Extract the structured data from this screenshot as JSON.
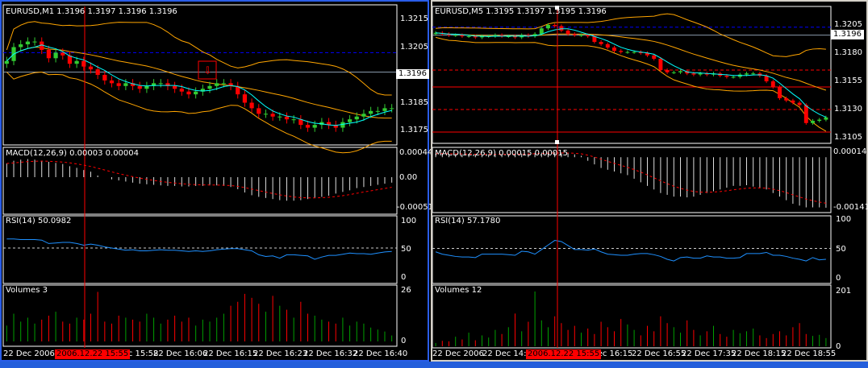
{
  "colors": {
    "up": "#32cd32",
    "down": "#ff0000",
    "bands": "#ffa500",
    "ma": "#00ffff",
    "rsi": "#1e90ff",
    "grid": "#ffffff",
    "active_frame": "#2a5de8"
  },
  "left": {
    "title": "EURUSD,M1  1.3196 1.3197 1.3196 1.3196",
    "price_ticks": [
      "1.3215",
      "1.3205",
      "1.3185",
      "1.3175"
    ],
    "price_tick_values": [
      1.3215,
      1.3205,
      1.3185,
      1.3175
    ],
    "current_price": "1.3196",
    "macd_label": "MACD(12,26,9) 0.00003 0.00004",
    "macd_ticks": [
      "0.00044",
      "0.00",
      "-0.00051"
    ],
    "rsi_label": "RSI(14) 50.0982",
    "rsi_ticks": [
      "100",
      "50",
      "0"
    ],
    "volume_label": "Volumes 3",
    "volume_ticks": [
      "26",
      "0"
    ],
    "cursor_time": "2006.12.22 15:55",
    "time_labels": [
      "22 Dec 2006",
      "Dec 15:58",
      "22 Dec 16:06",
      "22 Dec 16:15",
      "22 Dec 16:23",
      "22 Dec 16:32",
      "22 Dec 16:40"
    ],
    "closes": [
      1.32,
      1.3205,
      1.3206,
      1.3207,
      1.3207,
      1.3204,
      1.3201,
      1.3203,
      1.3202,
      1.3199,
      1.32,
      1.3198,
      1.3197,
      1.3195,
      1.3193,
      1.3192,
      1.3191,
      1.3192,
      1.3191,
      1.319,
      1.3191,
      1.3192,
      1.3192,
      1.3191,
      1.319,
      1.3189,
      1.3188,
      1.3189,
      1.319,
      1.3191,
      1.3192,
      1.3192,
      1.3191,
      1.3188,
      1.3185,
      1.3183,
      1.3181,
      1.3181,
      1.318,
      1.318,
      1.3179,
      1.3179,
      1.3177,
      1.3176,
      1.3177,
      1.3178,
      1.3177,
      1.3176,
      1.3178,
      1.3179,
      1.318,
      1.3181,
      1.3182,
      1.3182,
      1.3183,
      1.3183
    ],
    "macd_hist": [
      0.00025,
      0.0003,
      0.00032,
      0.00033,
      0.00032,
      0.0003,
      0.00028,
      0.00026,
      0.00024,
      0.0002,
      0.00017,
      0.00013,
      0.0001,
      3e-05,
      0,
      -4e-05,
      -6e-05,
      -8e-05,
      -0.0001,
      -0.00012,
      -0.00013,
      -0.00014,
      -0.00015,
      -0.00016,
      -0.00016,
      -0.00017,
      -0.00017,
      -0.00016,
      -0.00016,
      -0.00015,
      -0.00015,
      -0.00016,
      -0.00018,
      -0.00022,
      -0.00028,
      -0.00033,
      -0.00036,
      -0.00038,
      -0.0004,
      -0.00042,
      -0.00043,
      -0.00043,
      -0.00042,
      -0.0004,
      -0.00038,
      -0.00036,
      -0.00034,
      -0.0003,
      -0.00027,
      -0.00024,
      -0.0002,
      -0.00018,
      -0.00016,
      -0.00014,
      -0.00012,
      -0.0001
    ],
    "rsi": [
      66,
      66,
      65,
      65,
      65,
      64,
      58,
      59,
      60,
      60,
      58,
      55,
      57,
      55,
      52,
      50,
      48,
      46,
      47,
      45,
      45,
      46,
      47,
      46,
      46,
      45,
      44,
      45,
      44,
      45,
      47,
      48,
      49,
      49,
      47,
      45,
      38,
      35,
      36,
      32,
      38,
      38,
      37,
      36,
      30,
      34,
      37,
      37,
      39,
      41,
      40,
      40,
      39,
      41,
      43,
      44
    ],
    "volumes": [
      8,
      14,
      10,
      12,
      9,
      11,
      13,
      15,
      10,
      9,
      12,
      11,
      14,
      25,
      10,
      9,
      13,
      12,
      11,
      10,
      14,
      12,
      9,
      11,
      13,
      10,
      12,
      8,
      11,
      10,
      12,
      14,
      18,
      20,
      24,
      22,
      19,
      15,
      23,
      18,
      16,
      12,
      20,
      14,
      13,
      11,
      10,
      9,
      12,
      8,
      10,
      9,
      7,
      6,
      5,
      3
    ]
  },
  "right": {
    "title": "EURUSD,M5  1.3195 1.3197 1.3195 1.3196",
    "price_ticks": [
      "1.3205",
      "1.3180",
      "1.3155",
      "1.3130",
      "1.3105"
    ],
    "price_tick_values": [
      1.3205,
      1.318,
      1.3155,
      1.313,
      1.3105
    ],
    "current_price": "1.3196",
    "macd_label": "MACD(12,26,9) 0.00015 0.00015",
    "macd_ticks": [
      "0.00014",
      "-0.00141"
    ],
    "rsi_label": "RSI(14) 57.1780",
    "rsi_ticks": [
      "100",
      "50",
      "0"
    ],
    "volume_label": "Volumes 12",
    "volume_ticks": [
      "201",
      "0"
    ],
    "cursor_time": "2006.12.22 15:55",
    "time_labels": [
      "22 Dec 2006",
      "22 Dec 14:55",
      "Dec 16:15",
      "22 Dec 16:55",
      "22 Dec 17:35",
      "22 Dec 18:15",
      "22 Dec 18:55"
    ],
    "levels": [
      {
        "price": 1.3165,
        "style": "dashed"
      },
      {
        "price": 1.315,
        "style": "solid"
      },
      {
        "price": 1.313,
        "style": "dashed"
      },
      {
        "price": 1.311,
        "style": "solid"
      }
    ],
    "closes": [
      1.3198,
      1.3197,
      1.3196,
      1.3196,
      1.3195,
      1.3195,
      1.3194,
      1.3195,
      1.3195,
      1.3196,
      1.3195,
      1.3195,
      1.3194,
      1.3196,
      1.3195,
      1.3197,
      1.3202,
      1.3205,
      1.3204,
      1.32,
      1.3197,
      1.3196,
      1.3196,
      1.3195,
      1.319,
      1.3188,
      1.3185,
      1.3182,
      1.3181,
      1.3181,
      1.3181,
      1.318,
      1.3178,
      1.3175,
      1.3165,
      1.3163,
      1.3163,
      1.3164,
      1.3162,
      1.3161,
      1.3162,
      1.3161,
      1.3162,
      1.316,
      1.3159,
      1.3159,
      1.3161,
      1.3162,
      1.3162,
      1.316,
      1.3155,
      1.315,
      1.314,
      1.3138,
      1.3136,
      1.3134,
      1.3118,
      1.312,
      1.3121,
      1.3123
    ],
    "macd_hist": [
      0.0001,
      0.0001,
      9e-05,
      8e-05,
      8e-05,
      7e-05,
      7e-05,
      7e-05,
      8e-05,
      8e-05,
      8e-05,
      9e-05,
      9e-05,
      0.0001,
      0.00011,
      0.00012,
      0.00013,
      0.00014,
      0.00014,
      0.00013,
      0.00011,
      8e-05,
      4e-05,
      -0.0001,
      -0.0002,
      -0.0003,
      -0.00035,
      -0.0004,
      -0.00045,
      -0.0005,
      -0.0006,
      -0.0007,
      -0.0008,
      -0.0009,
      -0.001,
      -0.00105,
      -0.0011,
      -0.0011,
      -0.00112,
      -0.0011,
      -0.00105,
      -0.001,
      -0.00095,
      -0.0009,
      -0.00085,
      -0.0008,
      -0.0008,
      -0.00078,
      -0.00082,
      -0.00085,
      -0.0009,
      -0.001,
      -0.0011,
      -0.0012,
      -0.0013,
      -0.00135,
      -0.0014,
      -0.0014,
      -0.0014,
      -0.00141
    ],
    "rsi": [
      44,
      40,
      38,
      36,
      35,
      35,
      34,
      40,
      40,
      40,
      40,
      39,
      38,
      45,
      44,
      40,
      48,
      56,
      64,
      62,
      55,
      48,
      48,
      47,
      49,
      44,
      40,
      39,
      38,
      38,
      40,
      41,
      41,
      39,
      36,
      31,
      28,
      34,
      35,
      33,
      33,
      37,
      35,
      35,
      33,
      33,
      34,
      41,
      41,
      41,
      43,
      38,
      38,
      36,
      33,
      31,
      28,
      34,
      30,
      31
    ],
    "volumes": [
      12,
      20,
      18,
      35,
      25,
      50,
      22,
      40,
      32,
      60,
      45,
      70,
      120,
      55,
      90,
      201,
      95,
      70,
      110,
      85,
      60,
      75,
      50,
      65,
      45,
      90,
      70,
      55,
      100,
      80,
      60,
      40,
      75,
      55,
      110,
      85,
      70,
      50,
      95,
      60,
      40,
      55,
      75,
      45,
      35,
      60,
      48,
      55,
      65,
      40,
      30,
      45,
      55,
      40,
      70,
      85,
      45,
      38,
      42,
      30
    ]
  }
}
